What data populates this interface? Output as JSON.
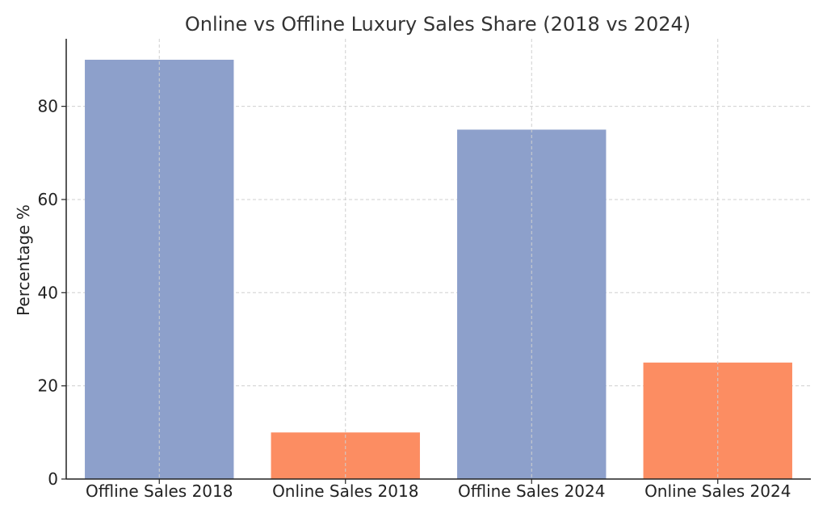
{
  "chart_data": {
    "type": "bar",
    "title": "Online vs Offline Luxury Sales Share (2018 vs 2024)",
    "xlabel": "",
    "ylabel": "Percentage %",
    "categories": [
      "Offline Sales 2018",
      "Online Sales 2018",
      "Offline Sales 2024",
      "Online Sales 2024"
    ],
    "values": [
      90,
      10,
      75,
      25
    ],
    "bar_colors": [
      "#8DA0CB",
      "#FC8D62",
      "#8DA0CB",
      "#FC8D62"
    ],
    "ylim": [
      0,
      94.5
    ],
    "yticks": [
      0,
      20,
      40,
      60,
      80
    ],
    "grid": true,
    "legend": "none"
  }
}
